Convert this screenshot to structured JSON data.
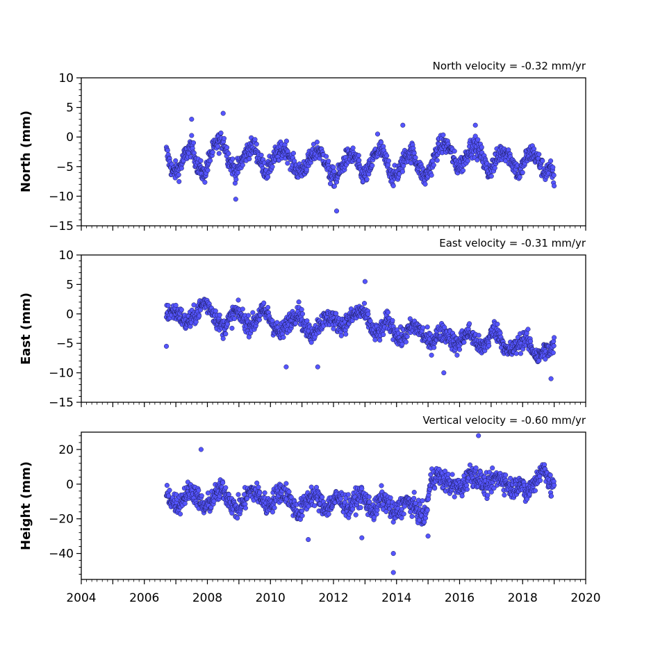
{
  "chart_data": [
    {
      "type": "scatter",
      "title": "North velocity = -0.32 mm/yr",
      "ylabel": "North (mm)",
      "xlabel": "",
      "xlim": [
        2004,
        2020
      ],
      "ylim": [
        -15,
        10
      ],
      "yticks": [
        10,
        5,
        0,
        -5,
        -10,
        -15
      ],
      "xticks": [],
      "grid": false,
      "color": "#5555ff",
      "series": [
        {
          "x": [
            2006.7,
            2006.9,
            2007.1,
            2007.3,
            2007.5,
            2007.7,
            2007.9,
            2008.1,
            2008.3,
            2008.5,
            2008.7,
            2008.9,
            2009.1,
            2009.3,
            2009.5,
            2009.7,
            2009.9,
            2010.1,
            2010.3,
            2010.5,
            2010.7,
            2010.9,
            2011.1,
            2011.3,
            2011.5,
            2011.7,
            2011.9,
            2012.1,
            2012.3,
            2012.5,
            2012.7,
            2012.9,
            2013.1,
            2013.3,
            2013.5,
            2013.7,
            2013.9,
            2014.1,
            2014.3,
            2014.5,
            2014.7,
            2014.9,
            2015.1,
            2015.3,
            2015.5,
            2015.7,
            2015.9,
            2016.1,
            2016.3,
            2016.5,
            2016.7,
            2016.9,
            2017.1,
            2017.3,
            2017.5,
            2017.7,
            2017.9,
            2018.1,
            2018.3,
            2018.5,
            2018.7,
            2018.9,
            2019.0
          ],
          "y": [
            -2.5,
            -6.0,
            -5.5,
            -3.0,
            -1.5,
            -5.0,
            -6.5,
            -3.0,
            -1.0,
            -0.5,
            -4.0,
            -6.0,
            -4.0,
            -2.0,
            -1.5,
            -4.5,
            -6.0,
            -3.5,
            -2.5,
            -2.0,
            -4.5,
            -6.0,
            -5.0,
            -3.5,
            -2.0,
            -3.5,
            -6.5,
            -7.0,
            -4.5,
            -3.0,
            -3.5,
            -6.5,
            -6.0,
            -3.0,
            -2.0,
            -4.5,
            -7.0,
            -5.5,
            -3.0,
            -2.5,
            -5.0,
            -7.0,
            -5.0,
            -2.0,
            -1.0,
            -2.0,
            -5.0,
            -4.5,
            -2.0,
            -1.5,
            -3.0,
            -6.0,
            -4.5,
            -2.5,
            -2.5,
            -4.5,
            -6.5,
            -3.5,
            -2.5,
            -4.0,
            -6.0,
            -5.5,
            -7.0
          ],
          "outliers": [
            [
              2007.5,
              3.0
            ],
            [
              2008.5,
              4.0
            ],
            [
              2008.9,
              -10.5
            ],
            [
              2012.1,
              -12.5
            ],
            [
              2014.2,
              2.0
            ],
            [
              2016.5,
              2.0
            ],
            [
              2013.4,
              0.5
            ]
          ]
        }
      ]
    },
    {
      "type": "scatter",
      "title": "East velocity = -0.31 mm/yr",
      "ylabel": "East (mm)",
      "xlabel": "",
      "xlim": [
        2004,
        2020
      ],
      "ylim": [
        -15,
        10
      ],
      "yticks": [
        10,
        5,
        0,
        -5,
        -10,
        -15
      ],
      "xticks": [],
      "grid": false,
      "color": "#5555ff",
      "series": [
        {
          "x": [
            2006.7,
            2006.9,
            2007.1,
            2007.3,
            2007.5,
            2007.7,
            2007.9,
            2008.1,
            2008.3,
            2008.5,
            2008.7,
            2008.9,
            2009.1,
            2009.3,
            2009.5,
            2009.7,
            2009.9,
            2010.1,
            2010.3,
            2010.5,
            2010.7,
            2010.9,
            2011.1,
            2011.3,
            2011.5,
            2011.7,
            2011.9,
            2012.1,
            2012.3,
            2012.5,
            2012.7,
            2012.9,
            2013.1,
            2013.3,
            2013.5,
            2013.7,
            2013.9,
            2014.1,
            2014.3,
            2014.5,
            2014.7,
            2014.9,
            2015.1,
            2015.3,
            2015.5,
            2015.7,
            2015.9,
            2016.1,
            2016.3,
            2016.5,
            2016.7,
            2016.9,
            2017.1,
            2017.3,
            2017.5,
            2017.7,
            2017.9,
            2018.1,
            2018.3,
            2018.5,
            2018.7,
            2018.9,
            2019.0
          ],
          "y": [
            0.0,
            0.5,
            0.0,
            -1.5,
            -1.0,
            0.5,
            2.0,
            1.0,
            -1.0,
            -2.5,
            -1.0,
            0.5,
            -0.5,
            -2.0,
            -1.5,
            0.5,
            0.0,
            -2.0,
            -3.5,
            -2.0,
            -0.5,
            0.5,
            -2.5,
            -3.5,
            -2.0,
            -1.0,
            -0.5,
            -1.5,
            -2.0,
            -1.0,
            0.0,
            0.5,
            -1.0,
            -3.5,
            -3.0,
            -1.0,
            -2.5,
            -4.5,
            -3.5,
            -2.0,
            -2.5,
            -4.0,
            -5.0,
            -3.5,
            -3.0,
            -4.0,
            -5.5,
            -4.0,
            -3.0,
            -4.5,
            -6.0,
            -4.5,
            -2.5,
            -4.0,
            -6.5,
            -6.0,
            -5.0,
            -4.0,
            -6.0,
            -7.5,
            -6.0,
            -6.5,
            -5.0
          ],
          "outliers": [
            [
              2006.7,
              -5.5
            ],
            [
              2010.5,
              -9.0
            ],
            [
              2011.5,
              -9.0
            ],
            [
              2013.0,
              5.5
            ],
            [
              2015.5,
              -10.0
            ],
            [
              2018.9,
              -11.0
            ]
          ]
        }
      ]
    },
    {
      "type": "scatter",
      "title": "Vertical velocity = -0.60 mm/yr",
      "ylabel": "Height (mm)",
      "xlabel": "",
      "xlim": [
        2004,
        2020
      ],
      "ylim": [
        -55,
        30
      ],
      "yticks": [
        20,
        0,
        -20,
        -40
      ],
      "xticks": [
        2004,
        2006,
        2008,
        2010,
        2012,
        2014,
        2016,
        2018,
        2020
      ],
      "grid": false,
      "color": "#5555ff",
      "series": [
        {
          "x": [
            2006.7,
            2006.9,
            2007.1,
            2007.3,
            2007.5,
            2007.7,
            2007.9,
            2008.1,
            2008.3,
            2008.5,
            2008.7,
            2008.9,
            2009.1,
            2009.3,
            2009.5,
            2009.7,
            2009.9,
            2010.1,
            2010.3,
            2010.5,
            2010.7,
            2010.9,
            2011.1,
            2011.3,
            2011.5,
            2011.7,
            2011.9,
            2012.1,
            2012.3,
            2012.5,
            2012.7,
            2012.9,
            2013.1,
            2013.3,
            2013.5,
            2013.7,
            2013.9,
            2014.1,
            2014.3,
            2014.5,
            2014.7,
            2014.9,
            2015.1,
            2015.3,
            2015.5,
            2015.7,
            2015.9,
            2016.1,
            2016.3,
            2016.5,
            2016.7,
            2016.9,
            2017.1,
            2017.3,
            2017.5,
            2017.7,
            2017.9,
            2018.1,
            2018.3,
            2018.5,
            2018.7,
            2018.9,
            2019.0
          ],
          "y": [
            -5,
            -10,
            -12,
            -6,
            -3,
            -8,
            -14,
            -10,
            -5,
            -3,
            -9,
            -15,
            -12,
            -5,
            -4,
            -8,
            -13,
            -9,
            -4,
            -5,
            -12,
            -17,
            -11,
            -6,
            -8,
            -14,
            -12,
            -8,
            -10,
            -14,
            -9,
            -6,
            -12,
            -16,
            -8,
            -10,
            -18,
            -14,
            -10,
            -12,
            -16,
            -20,
            3,
            5,
            2,
            0,
            -2,
            -2,
            6,
            5,
            1,
            -2,
            3,
            4,
            0,
            -3,
            2,
            -6,
            -1,
            5,
            10,
            -3,
            2
          ],
          "outliers": [
            [
              2007.8,
              20
            ],
            [
              2016.6,
              28
            ],
            [
              2013.9,
              -51
            ],
            [
              2013.9,
              -40
            ],
            [
              2011.2,
              -32
            ],
            [
              2012.9,
              -31
            ],
            [
              2015.0,
              -30
            ]
          ]
        }
      ]
    }
  ]
}
